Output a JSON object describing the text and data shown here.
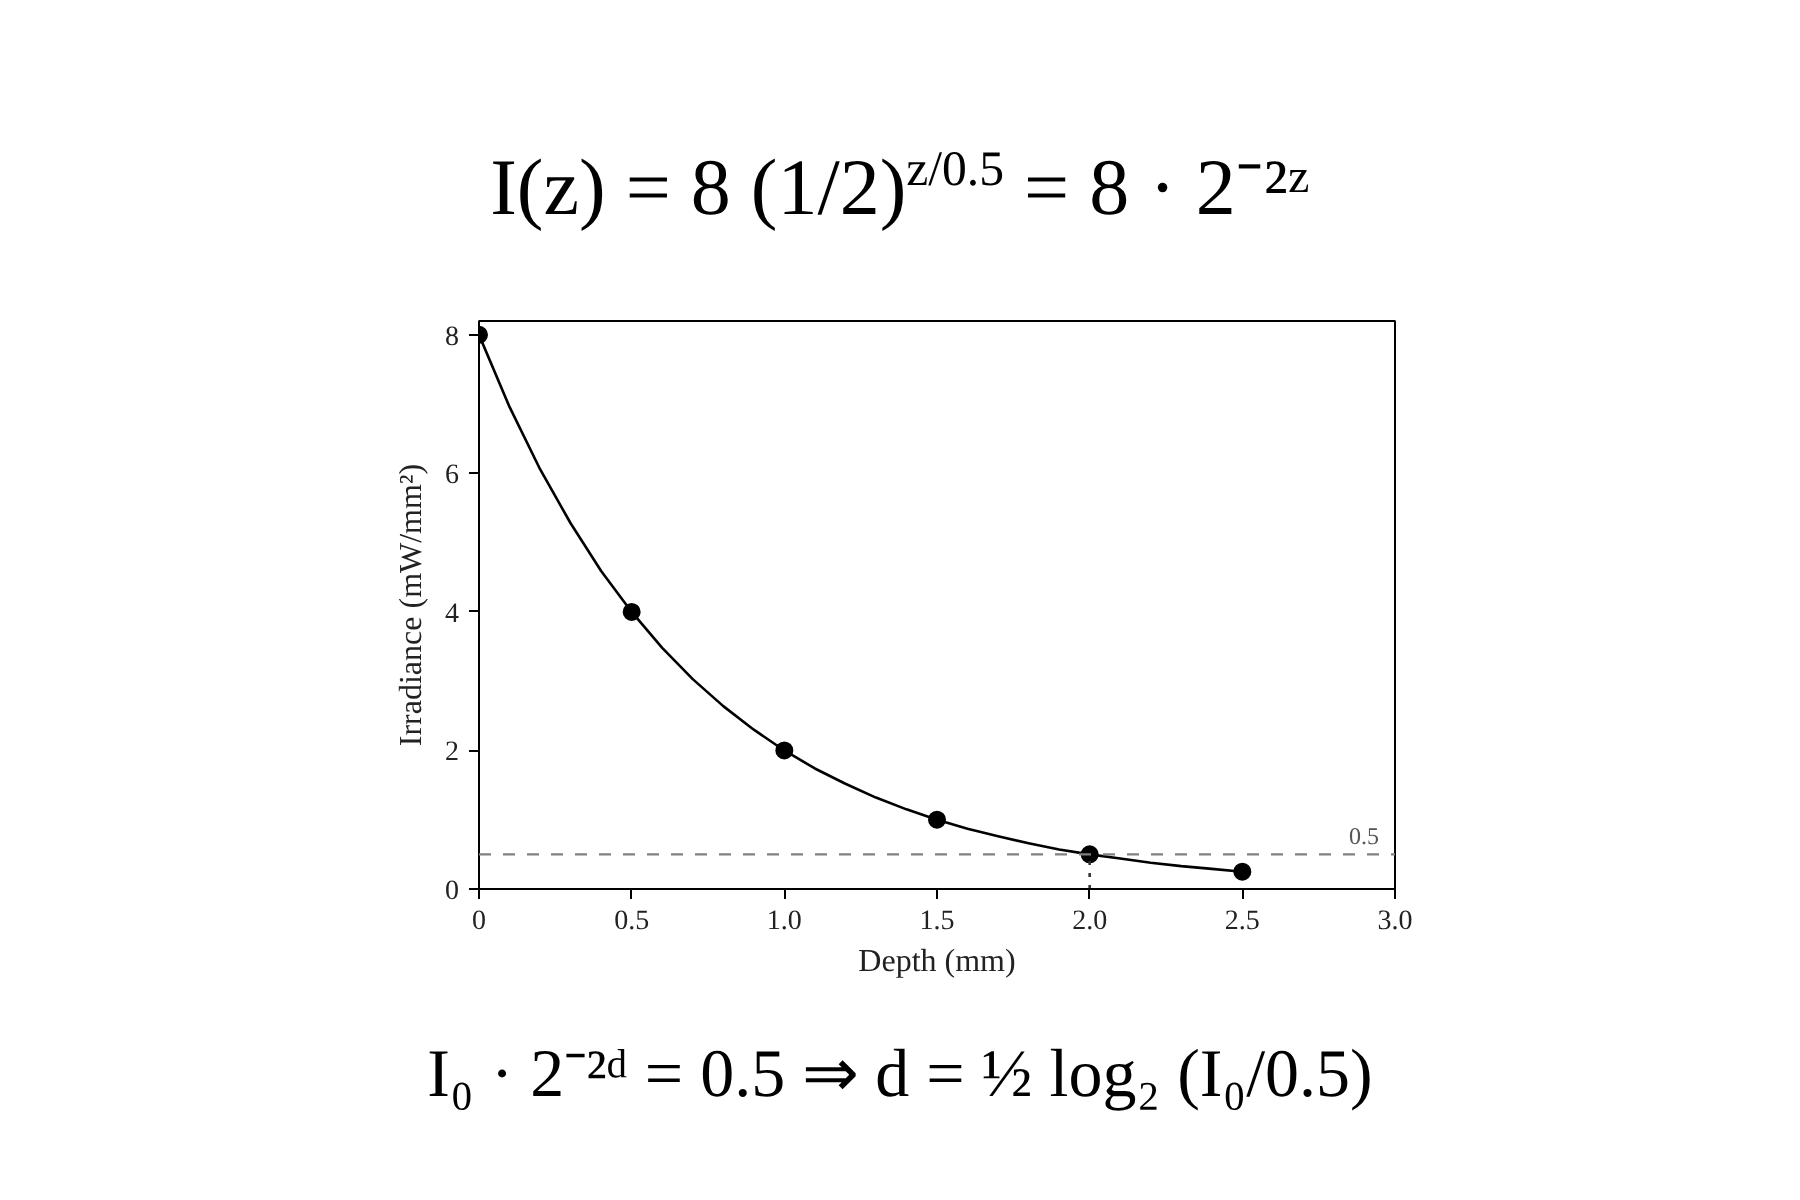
{
  "chart_data": {
    "type": "line",
    "title": "I(z) = 8 (1/2)$^{z/0.5}$ = 8 · 2⁻²ᶻ",
    "xlabel": "Depth (mm)",
    "ylabel": "Irradiance (mW/mm²)",
    "annotations": [
      "I₀ · 2⁻²ᵈ = 0.5 ⇒ d = ½ log₂ (I₀/0.5)"
    ],
    "xlim": [
      0,
      3
    ],
    "ylim": [
      0,
      8.2
    ],
    "xticks": [
      0,
      0.5,
      {
        "value": 1,
        "label": "1.0"
      },
      1.5,
      {
        "value": 2,
        "label": "2.0"
      },
      2.5,
      {
        "value": 3,
        "label": "3.0"
      }
    ],
    "yticks": [
      0,
      2,
      4,
      6,
      8
    ],
    "series": [
      {
        "color": "#000000",
        "x": [
          0,
          0.1,
          0.2,
          0.3,
          0.4,
          0.5,
          0.6,
          0.7,
          0.8,
          0.9,
          1.0,
          1.1,
          1.2,
          1.3,
          1.4,
          1.5,
          1.6,
          1.7,
          1.8,
          1.9,
          2.0,
          2.1,
          2.2,
          2.3,
          2.4,
          2.5
        ],
        "values": [
          8,
          6.96,
          6.06,
          5.28,
          4.59,
          4.0,
          3.48,
          3.03,
          2.64,
          2.3,
          2.0,
          1.74,
          1.52,
          1.32,
          1.15,
          1.0,
          0.87,
          0.76,
          0.66,
          0.57,
          0.5,
          0.44,
          0.38,
          0.33,
          0.29,
          0.25
        ]
      },
      {
        "type": "scatter",
        "color": "#000000",
        "marker": "circle",
        "x": [
          0,
          0.5,
          1.0,
          1.5,
          2.0,
          2.5
        ],
        "values": [
          8,
          4,
          2,
          1,
          0.5,
          0.25
        ]
      },
      {
        "type": "line",
        "color": "#333333",
        "line_style": "dotted",
        "x": [
          2.0,
          2.0
        ],
        "values": [
          0,
          0.5
        ]
      }
    ],
    "ref_lines": [
      {
        "axis": "y",
        "value": 0.5,
        "label": "0.5",
        "color": "#808080",
        "line_style": "dashed"
      }
    ]
  }
}
